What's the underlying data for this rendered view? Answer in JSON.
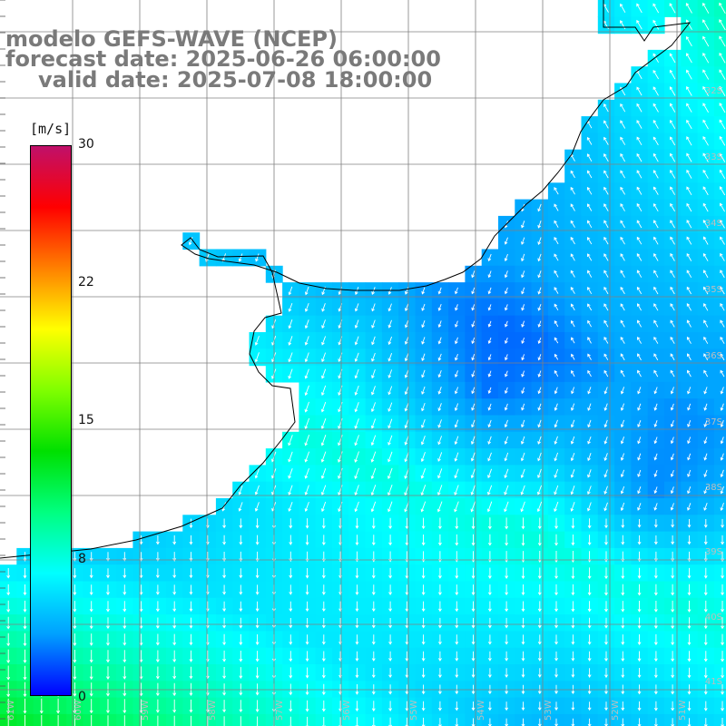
{
  "title": {
    "line1": "modelo GEFS-WAVE (NCEP)",
    "line2": "forecast date: 2025-06-26 06:00:00",
    "line3": "valid date: 2025-07-08 18:00:00"
  },
  "colorbar": {
    "unit": "[m/s]",
    "ticks": [
      "30",
      "22",
      "15",
      "8",
      "0"
    ],
    "colors": [
      "#0000ff",
      "#00a0ff",
      "#00ffff",
      "#00ff80",
      "#00e000",
      "#80ff00",
      "#ffff00",
      "#ff8000",
      "#ff0000",
      "#c0106a"
    ]
  },
  "map": {
    "land_color": "#ffffff",
    "grid_color": "#808080",
    "lat_labels": [
      "32S",
      "33S",
      "34S",
      "35S",
      "36S",
      "37S",
      "38S",
      "39S",
      "40S",
      "41S"
    ],
    "lon_labels": [
      "61W",
      "60W",
      "59W",
      "58W",
      "57W",
      "56W",
      "55W",
      "54W",
      "53W",
      "52W",
      "51W"
    ]
  }
}
